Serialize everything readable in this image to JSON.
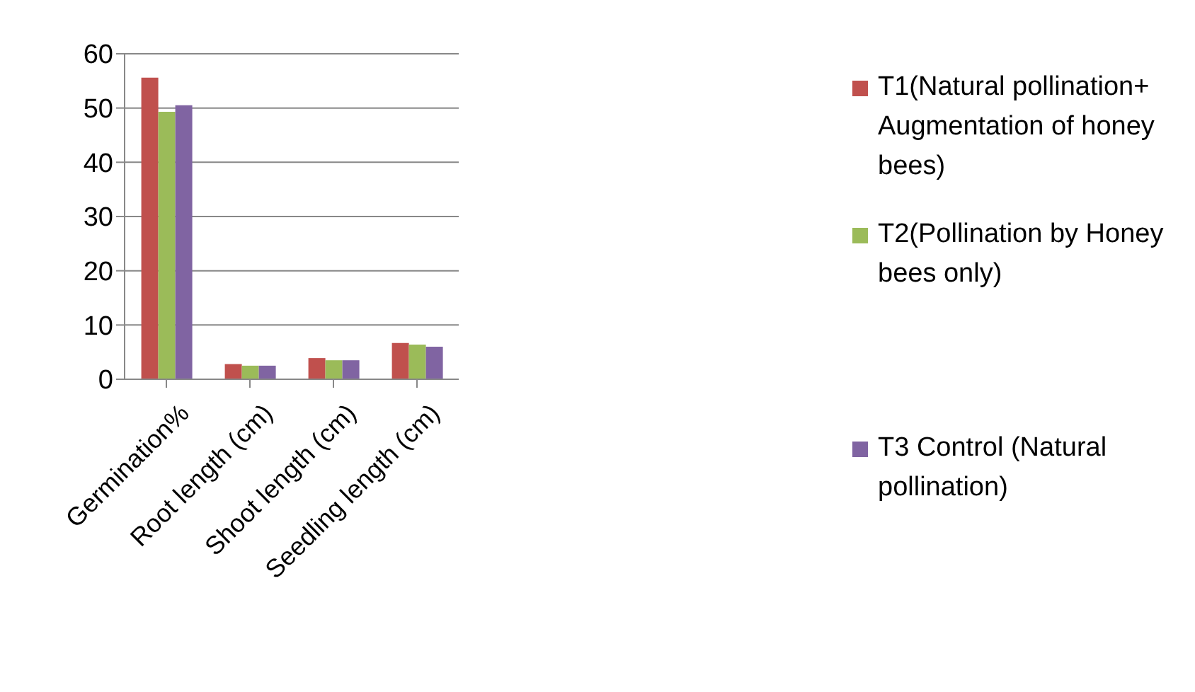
{
  "chart_data": {
    "type": "bar",
    "categories": [
      "Germination%",
      "Root length (cm)",
      "Shoot length (cm)",
      "Seedling length (cm)"
    ],
    "series": [
      {
        "name": "T1(Natural pollination+ Augmentation of honey bees)",
        "color": "#c0504d",
        "values": [
          55.6,
          2.8,
          3.9,
          6.7
        ]
      },
      {
        "name": "T2(Pollination by Honey bees only)",
        "color": "#9bbb59",
        "values": [
          49.3,
          2.5,
          3.5,
          6.4
        ]
      },
      {
        "name": "T3 Control (Natural pollination)",
        "color": "#8064a2",
        "values": [
          50.5,
          2.5,
          3.5,
          6.0
        ]
      }
    ],
    "ylim": [
      0,
      60
    ],
    "yticks": [
      0,
      10,
      20,
      30,
      40,
      50,
      60
    ],
    "grid": "y",
    "legend": "right"
  }
}
